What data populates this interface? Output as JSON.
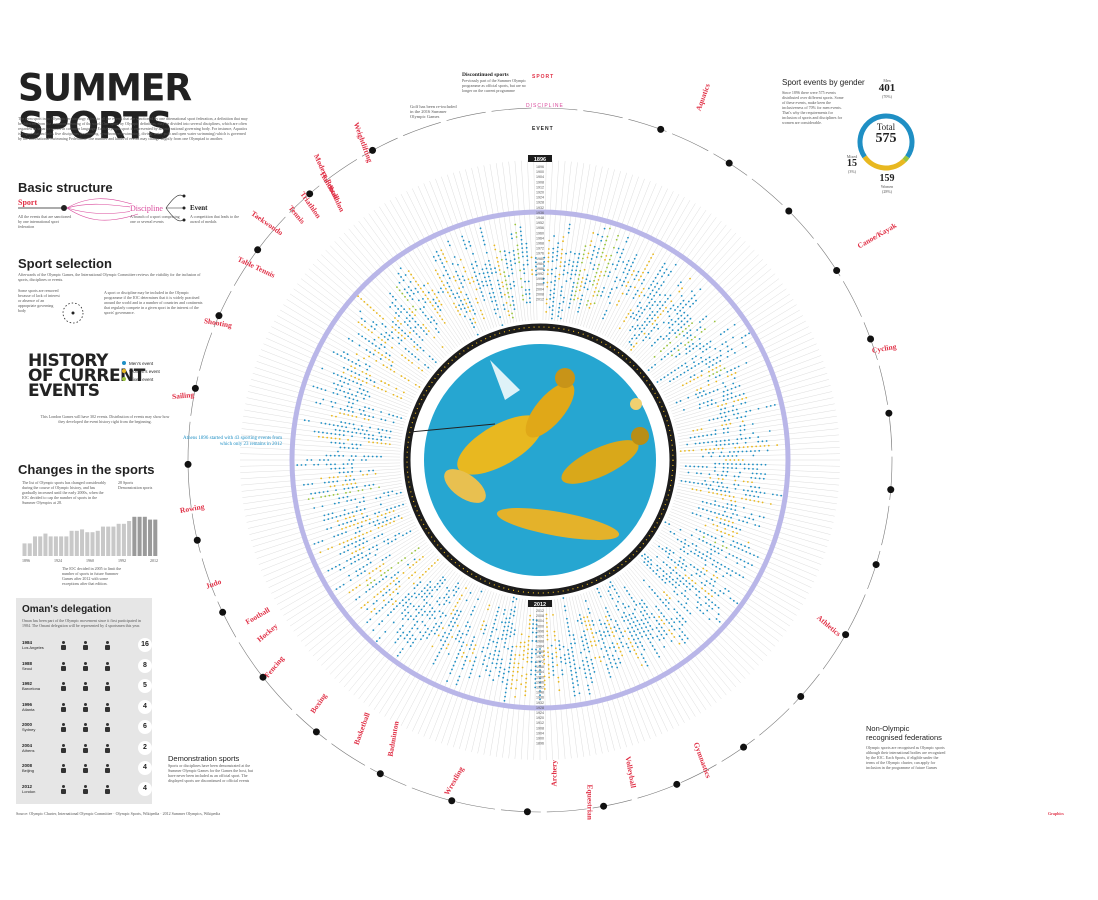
{
  "title": "SUMMER SPORTS",
  "intro": "The term sport in an Olympic terminology refers to all the events that are sanctioned by one international sport federation, a definition that may be different from the common meaning of the word. One sport, by Olympic definition, may be divided into several disciplines, which are often regarded as separate sports in common language. Each Olympic sport is represented by an international governing body. For instance, Aquatics is a sport that includes five disciplines (swimming, synchronized swimming, diving, water polo and open water swimming) which is governed by the International Swimming Federation. The number and kinds of events may change slightly from one Olympiad to another.",
  "basic": {
    "heading": "Basic structure",
    "sport": "Sport",
    "discipline": "Discipline",
    "event": "Event",
    "sport_desc": "All the events that are sanctioned by one international sport federation",
    "discipline_desc": "A branch of a sport comprising one or several events",
    "event_desc": "A competition that leads to the award of medals"
  },
  "selection": {
    "heading": "Sport selection",
    "desc": "Afterwards of the Olympic Games, the International Olympic Committee reviews the viability for the inclusion of sports, disciplines or events.",
    "left_note": "Some sports are removed because of lack of interest or absence of an appropriate governing body",
    "right_note": "A sport or discipline may be included in the Olympic programme if the IOC determines that it is widely practised around the world and in a number of countries and continents that regularly compete in a given sport in the interest of the sports' governance."
  },
  "history": {
    "heading": [
      "HISTORY",
      "OF CURRENT",
      "EVENTS"
    ],
    "legend": [
      "Men's event",
      "Women's event",
      "Mixed event"
    ],
    "legend_colors": [
      "#1f8fc4",
      "#e8b820",
      "#9ac43c"
    ],
    "desc": "This London Games will have 302 events. Distribution of events may show how they developed the event history right from the beginning."
  },
  "changes": {
    "heading": "Changes in the sports",
    "desc": "The list of Olympic sports has changed considerably during the course of Olympic history, and has gradually increased until the early 2000s, when the IOC decided to cap the number of sports in the Summer Olympics at 28.",
    "legend": [
      "28 Sports",
      "Demonstration sports"
    ],
    "note": "The IOC decided in 2005 to limit the number of sports in future Summer Games after 2012 with some exceptions after that edition.",
    "bars": [
      9,
      9,
      14,
      14,
      16,
      14,
      14,
      14,
      14,
      18,
      18,
      19,
      17,
      17,
      18,
      21,
      21,
      21,
      23,
      23,
      25,
      28,
      28,
      28,
      26,
      26
    ],
    "bar_labels": [
      "28",
      "28",
      "26"
    ],
    "axis": [
      "1896",
      "1924",
      "1960",
      "1992",
      "2012"
    ]
  },
  "oman": {
    "heading": "Oman's delegation",
    "desc": "Oman has been part of the Olympic movement since it first participated in 1984. The Omani delegation will be represented by 4 sportsmen this year.",
    "rows": [
      {
        "year": "1984",
        "city": "Los Angeles",
        "total": "16"
      },
      {
        "year": "1988",
        "city": "Seoul",
        "total": "8"
      },
      {
        "year": "1992",
        "city": "Barcelona",
        "total": "5"
      },
      {
        "year": "1996",
        "city": "Atlanta",
        "total": "4"
      },
      {
        "year": "2000",
        "city": "Sydney",
        "total": "6"
      },
      {
        "year": "2004",
        "city": "Athens",
        "total": "2"
      },
      {
        "year": "2008",
        "city": "Beijing",
        "total": "4"
      },
      {
        "year": "2012",
        "city": "London",
        "total": "4"
      }
    ]
  },
  "gender": {
    "heading": "Sport events by gender",
    "desc": "Since 1896 there were 575 events distributed over different sports. Some of these events, make keen the inclusiveness of 70% for men events. That's why the requirements for inclusion of sports and disciplines for women are considerable.",
    "men_label": "Men",
    "men_value": "401",
    "men_pct": "(70%)",
    "total_label": "Total",
    "total_value": "575",
    "mixed_label": "Mixed",
    "mixed_value": "15",
    "mixed_pct": "(3%)",
    "women_label": "Women",
    "women_value": "159",
    "women_pct": "(28%)",
    "shares": {
      "men": 0.7,
      "women": 0.28,
      "mixed": 0.03
    },
    "colors": {
      "men": "#1f8fc4",
      "women": "#e8b820",
      "mixed": "#9ac43c"
    }
  },
  "wheel": {
    "key_sport": "SPORT",
    "key_discipline": "DISCIPLINE",
    "key_event": "EVENT",
    "year_top": "1896",
    "year_bottom": "2012",
    "years": [
      "1896",
      "1900",
      "1904",
      "1908",
      "1912",
      "1920",
      "1924",
      "1928",
      "1932",
      "1936",
      "1948",
      "1952",
      "1956",
      "1960",
      "1964",
      "1968",
      "1972",
      "1976",
      "1980",
      "1984",
      "1988",
      "1992",
      "1996",
      "2000",
      "2004",
      "2008",
      "2012"
    ],
    "discontinued": "Discontinued sports",
    "discontinued_desc": "Previously part of the Summer Olympic programme as official sports, but are no longer on the current programme",
    "golf": "Golf has been re-included in the 2016 Summer Olympic Games",
    "athens": "Athens 1896 started with 43 sporting events from which only 23 remains in 2012",
    "demo": "Demonstration sports",
    "demo_desc": "Sports or disciplines have been demonstrated at the Summer Olympic Games for the Games the host, but have never been included as an official sport. The displayed sports are discontinued or official events",
    "nonolympic": "Non-Olympic recognised federations",
    "nonolympic_desc": "Olympic sports are recognised as Olympic sports although their international bodies are recognized by the IOC. Each Sports, if eligible under the terms of the Olympic charter, can apply for inclusion in the programme of future Games"
  },
  "sports": [
    "Aquatics",
    "Canoe/Kayak",
    "Cycling",
    "Athletics",
    "Gymnastics",
    "Volleyball",
    "Equestrian",
    "Archery",
    "Wrestling",
    "Badminton",
    "Basketball",
    "Boxing",
    "Fencing",
    "Hockey",
    "Football",
    "Judo",
    "Rowing",
    "Sailing",
    "Shooting",
    "Table Tennis",
    "Taekwondo",
    "Tennis",
    "Triathlon",
    "Handball",
    "Modern Pentathlon",
    "Weightlifting"
  ],
  "source": "Source: Olympic Charter, International Olympic Committee · Olympic Sports, Wikipedia · 2012 Summer Olympics, Wikipedia",
  "credit": "Graphics"
}
